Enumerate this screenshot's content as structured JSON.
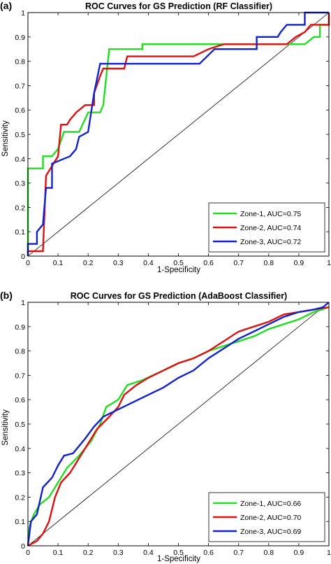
{
  "chart_data": [
    {
      "type": "line",
      "panel_label": "(a)",
      "title": "ROC Curves for GS Prediction (RF Classifier)",
      "xlabel": "1-Specificity",
      "ylabel": "Sensitivity",
      "xlim": [
        0,
        1
      ],
      "ylim": [
        0,
        1
      ],
      "xticks": [
        "0",
        "0.1",
        "0.2",
        "0.3",
        "0.4",
        "0.5",
        "0.6",
        "0.7",
        "0.8",
        "0.9",
        "1"
      ],
      "yticks": [
        "0",
        "0.1",
        "0.2",
        "0.3",
        "0.4",
        "0.5",
        "0.6",
        "0.7",
        "0.8",
        "0.9",
        "1"
      ],
      "grid": false,
      "legend_position": "bottom-right",
      "reference_line": true,
      "series": [
        {
          "name": "Zone-1, AUC=0.75",
          "color": "#22dd22",
          "points": [
            [
              0,
              0
            ],
            [
              0,
              0.36
            ],
            [
              0.05,
              0.36
            ],
            [
              0.05,
              0.41
            ],
            [
              0.08,
              0.41
            ],
            [
              0.1,
              0.44
            ],
            [
              0.12,
              0.51
            ],
            [
              0.17,
              0.51
            ],
            [
              0.2,
              0.59
            ],
            [
              0.24,
              0.59
            ],
            [
              0.25,
              0.62
            ],
            [
              0.27,
              0.85
            ],
            [
              0.38,
              0.85
            ],
            [
              0.38,
              0.87
            ],
            [
              0.92,
              0.87
            ],
            [
              0.95,
              0.9
            ],
            [
              0.97,
              0.9
            ],
            [
              0.97,
              0.95
            ],
            [
              1.0,
              0.95
            ],
            [
              1,
              1
            ]
          ]
        },
        {
          "name": "Zone-2, AUC=0.74",
          "color": "#dd1111",
          "points": [
            [
              0,
              0
            ],
            [
              0,
              0.02
            ],
            [
              0.05,
              0.02
            ],
            [
              0.06,
              0.33
            ],
            [
              0.1,
              0.41
            ],
            [
              0.11,
              0.54
            ],
            [
              0.13,
              0.54
            ],
            [
              0.14,
              0.56
            ],
            [
              0.16,
              0.59
            ],
            [
              0.19,
              0.62
            ],
            [
              0.22,
              0.62
            ],
            [
              0.22,
              0.67
            ],
            [
              0.24,
              0.74
            ],
            [
              0.25,
              0.77
            ],
            [
              0.32,
              0.77
            ],
            [
              0.33,
              0.82
            ],
            [
              0.55,
              0.82
            ],
            [
              0.6,
              0.85
            ],
            [
              0.65,
              0.87
            ],
            [
              0.86,
              0.87
            ],
            [
              0.89,
              0.9
            ],
            [
              0.92,
              0.92
            ],
            [
              0.94,
              0.95
            ],
            [
              1.0,
              0.95
            ],
            [
              1,
              1
            ]
          ]
        },
        {
          "name": "Zone-3, AUC=0.72",
          "color": "#1122cc",
          "points": [
            [
              0,
              0
            ],
            [
              0,
              0.05
            ],
            [
              0.03,
              0.05
            ],
            [
              0.03,
              0.1
            ],
            [
              0.05,
              0.13
            ],
            [
              0.06,
              0.28
            ],
            [
              0.08,
              0.28
            ],
            [
              0.08,
              0.38
            ],
            [
              0.1,
              0.39
            ],
            [
              0.14,
              0.41
            ],
            [
              0.16,
              0.44
            ],
            [
              0.17,
              0.49
            ],
            [
              0.2,
              0.51
            ],
            [
              0.22,
              0.67
            ],
            [
              0.24,
              0.79
            ],
            [
              0.57,
              0.79
            ],
            [
              0.62,
              0.85
            ],
            [
              0.76,
              0.85
            ],
            [
              0.76,
              0.9
            ],
            [
              0.83,
              0.9
            ],
            [
              0.84,
              0.92
            ],
            [
              0.86,
              0.95
            ],
            [
              0.92,
              0.95
            ],
            [
              0.92,
              1.0
            ],
            [
              1,
              1
            ]
          ]
        }
      ]
    },
    {
      "type": "line",
      "panel_label": "(b)",
      "title": "ROC Curves for GS Prediction (AdaBoost Classifier)",
      "xlabel": "1-Specificity",
      "ylabel": "Sensitivity",
      "xlim": [
        0,
        1
      ],
      "ylim": [
        0,
        1
      ],
      "xticks": [
        "0",
        "0.1",
        "0.2",
        "0.3",
        "0.4",
        "0.5",
        "0.6",
        "0.7",
        "0.8",
        "0.9",
        "1"
      ],
      "yticks": [
        "0",
        "0.1",
        "0.2",
        "0.3",
        "0.4",
        "0.5",
        "0.6",
        "0.7",
        "0.8",
        "0.9",
        "1"
      ],
      "grid": false,
      "legend_position": "bottom-right",
      "reference_line": true,
      "series": [
        {
          "name": "Zone-1, AUC=0.66",
          "color": "#22dd22",
          "points": [
            [
              0,
              0
            ],
            [
              0.005,
              0.08
            ],
            [
              0.02,
              0.13
            ],
            [
              0.04,
              0.17
            ],
            [
              0.07,
              0.2
            ],
            [
              0.1,
              0.26
            ],
            [
              0.13,
              0.32
            ],
            [
              0.17,
              0.37
            ],
            [
              0.21,
              0.43
            ],
            [
              0.24,
              0.5
            ],
            [
              0.26,
              0.57
            ],
            [
              0.3,
              0.6
            ],
            [
              0.33,
              0.66
            ],
            [
              0.38,
              0.68
            ],
            [
              0.45,
              0.72
            ],
            [
              0.5,
              0.75
            ],
            [
              0.55,
              0.77
            ],
            [
              0.6,
              0.8
            ],
            [
              0.65,
              0.82
            ],
            [
              0.7,
              0.84
            ],
            [
              0.75,
              0.86
            ],
            [
              0.8,
              0.89
            ],
            [
              0.85,
              0.91
            ],
            [
              0.9,
              0.93
            ],
            [
              0.95,
              0.96
            ],
            [
              1.0,
              0.98
            ]
          ]
        },
        {
          "name": "Zone-2, AUC=0.70",
          "color": "#dd1111",
          "points": [
            [
              0,
              0
            ],
            [
              0.03,
              0.02
            ],
            [
              0.05,
              0.05
            ],
            [
              0.07,
              0.1
            ],
            [
              0.09,
              0.2
            ],
            [
              0.11,
              0.26
            ],
            [
              0.14,
              0.3
            ],
            [
              0.17,
              0.36
            ],
            [
              0.2,
              0.42
            ],
            [
              0.23,
              0.48
            ],
            [
              0.27,
              0.53
            ],
            [
              0.3,
              0.57
            ],
            [
              0.32,
              0.62
            ],
            [
              0.36,
              0.66
            ],
            [
              0.4,
              0.69
            ],
            [
              0.45,
              0.72
            ],
            [
              0.5,
              0.75
            ],
            [
              0.55,
              0.77
            ],
            [
              0.6,
              0.8
            ],
            [
              0.65,
              0.84
            ],
            [
              0.7,
              0.88
            ],
            [
              0.75,
              0.9
            ],
            [
              0.8,
              0.92
            ],
            [
              0.85,
              0.95
            ],
            [
              0.9,
              0.96
            ],
            [
              0.95,
              0.97
            ],
            [
              1.0,
              0.98
            ]
          ]
        },
        {
          "name": "Zone-3, AUC=0.69",
          "color": "#1122cc",
          "points": [
            [
              0,
              0
            ],
            [
              0.005,
              0.05
            ],
            [
              0.01,
              0.1
            ],
            [
              0.03,
              0.13
            ],
            [
              0.05,
              0.24
            ],
            [
              0.08,
              0.28
            ],
            [
              0.1,
              0.33
            ],
            [
              0.12,
              0.37
            ],
            [
              0.15,
              0.38
            ],
            [
              0.17,
              0.41
            ],
            [
              0.19,
              0.44
            ],
            [
              0.22,
              0.49
            ],
            [
              0.25,
              0.53
            ],
            [
              0.3,
              0.56
            ],
            [
              0.35,
              0.59
            ],
            [
              0.4,
              0.62
            ],
            [
              0.45,
              0.65
            ],
            [
              0.5,
              0.69
            ],
            [
              0.55,
              0.72
            ],
            [
              0.6,
              0.77
            ],
            [
              0.65,
              0.81
            ],
            [
              0.7,
              0.85
            ],
            [
              0.75,
              0.88
            ],
            [
              0.8,
              0.91
            ],
            [
              0.85,
              0.94
            ],
            [
              0.9,
              0.96
            ],
            [
              0.95,
              0.97
            ],
            [
              0.98,
              0.98
            ],
            [
              1.0,
              1.0
            ]
          ]
        }
      ]
    }
  ]
}
